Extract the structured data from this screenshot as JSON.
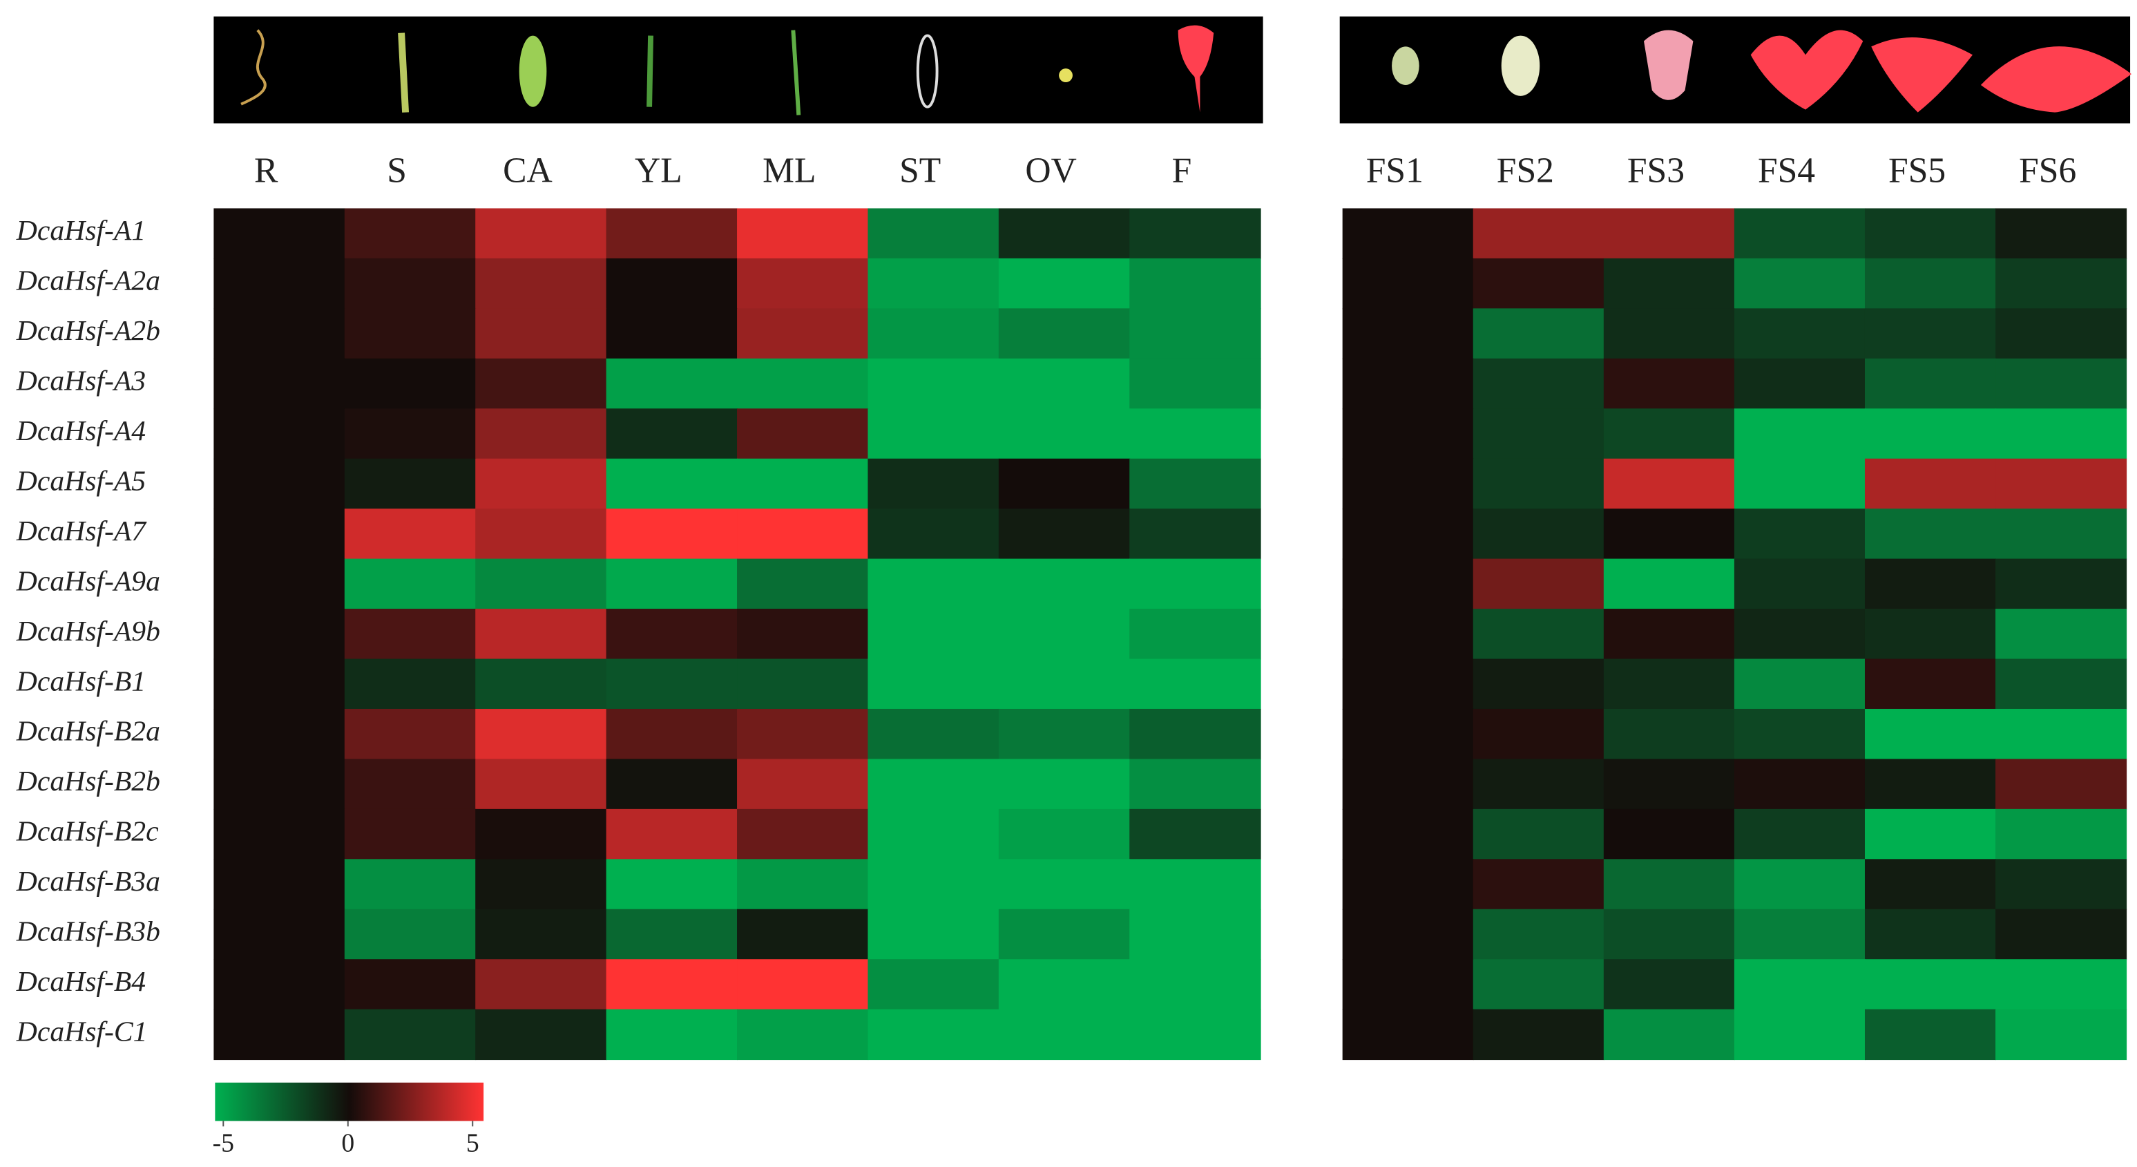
{
  "chart_data": {
    "type": "heatmap",
    "rows": [
      "DcaHsf-A1",
      "DcaHsf-A2a",
      "DcaHsf-A2b",
      "DcaHsf-A3",
      "DcaHsf-A4",
      "DcaHsf-A5",
      "DcaHsf-A7",
      "DcaHsf-A9a",
      "DcaHsf-A9b",
      "DcaHsf-B1",
      "DcaHsf-B2a",
      "DcaHsf-B2b",
      "DcaHsf-B2c",
      "DcaHsf-B3a",
      "DcaHsf-B3b",
      "DcaHsf-B4",
      "DcaHsf-C1"
    ],
    "panels": [
      {
        "columns": [
          "R",
          "S",
          "CA",
          "YL",
          "ML",
          "ST",
          "OV",
          "F"
        ],
        "values": [
          [
            0,
            1,
            3.5,
            2,
            4.5,
            -3.5,
            -1,
            -1.5
          ],
          [
            0,
            0.5,
            2.5,
            0,
            3,
            -4.5,
            -5,
            -4
          ],
          [
            0,
            0.5,
            2.5,
            0,
            2.8,
            -4.2,
            -3.5,
            -4
          ],
          [
            0,
            0,
            1,
            -4.5,
            -4.5,
            -5,
            -5,
            -4
          ],
          [
            0,
            0.2,
            2.5,
            -1,
            1.5,
            -5,
            -5,
            -5
          ],
          [
            0,
            -0.5,
            3.5,
            -5,
            -5,
            -1,
            0,
            -3
          ],
          [
            0,
            4,
            3.2,
            5,
            5,
            -1.2,
            -0.5,
            -1.5
          ],
          [
            0,
            -4.5,
            -3.8,
            -4.8,
            -3,
            -5,
            -5,
            -5
          ],
          [
            0,
            1.2,
            3.5,
            0.8,
            0.5,
            -5,
            -5,
            -4.3
          ],
          [
            0,
            -1,
            -2,
            -2.2,
            -2.2,
            -5,
            -5,
            -5
          ],
          [
            0,
            1.8,
            4.3,
            1.5,
            2,
            -3,
            -3.3,
            -2.5
          ],
          [
            0,
            0.8,
            3.3,
            -0.2,
            3.2,
            -5,
            -5,
            -4
          ],
          [
            0,
            0.8,
            0.1,
            3.5,
            1.8,
            -5,
            -4.5,
            -1.8
          ],
          [
            0,
            -4,
            -0.3,
            -5,
            -4.3,
            -5,
            -5,
            -5
          ],
          [
            0,
            -3.5,
            -0.5,
            -2.8,
            -0.5,
            -5,
            -4,
            -5
          ],
          [
            0,
            0.3,
            2.5,
            5,
            5,
            -4,
            -5,
            -5
          ],
          [
            0,
            -1.5,
            -0.8,
            -5,
            -4.5,
            -5,
            -5,
            -5
          ]
        ]
      },
      {
        "columns": [
          "FS1",
          "FS2",
          "FS3",
          "FS4",
          "FS5",
          "FS6"
        ],
        "values": [
          [
            0,
            2.8,
            2.8,
            -2,
            -1.5,
            -0.5
          ],
          [
            0,
            0.5,
            -1,
            -3.5,
            -2.5,
            -1.5
          ],
          [
            0,
            -3,
            -1,
            -1.5,
            -1.5,
            -1
          ],
          [
            0,
            -1.5,
            0.5,
            -1,
            -2.5,
            -2.5
          ],
          [
            0,
            -1.5,
            -1.8,
            -5,
            -5,
            -5
          ],
          [
            0,
            -1.5,
            3.8,
            -5,
            3.2,
            3.2
          ],
          [
            0,
            -1,
            0,
            -1.5,
            -3,
            -3
          ],
          [
            0,
            2,
            -5,
            -1.2,
            -0.5,
            -1
          ],
          [
            0,
            -2,
            0.3,
            -0.8,
            -1,
            -4
          ],
          [
            0,
            -0.5,
            -1,
            -3.8,
            0.5,
            -2.2
          ],
          [
            0,
            0.3,
            -1.5,
            -1.8,
            -5,
            -5
          ],
          [
            0,
            -0.5,
            -0.2,
            0.2,
            -0.5,
            1.5
          ],
          [
            0,
            -2,
            0,
            -1.5,
            -5,
            -4.3
          ],
          [
            0,
            0.5,
            -2.8,
            -4.2,
            -0.5,
            -1
          ],
          [
            0,
            -2.5,
            -2,
            -3.5,
            -1.2,
            -0.5
          ],
          [
            0,
            -3,
            -1.2,
            -5,
            -5,
            -5
          ],
          [
            0,
            -0.5,
            -4,
            -5,
            -2.5,
            -4.8
          ]
        ]
      }
    ],
    "zlim": [
      -5,
      5
    ],
    "zticks": [
      -5,
      0,
      5
    ],
    "colors": {
      "low": "#00b050",
      "mid": "#140c0a",
      "high": "#ff3333"
    }
  }
}
